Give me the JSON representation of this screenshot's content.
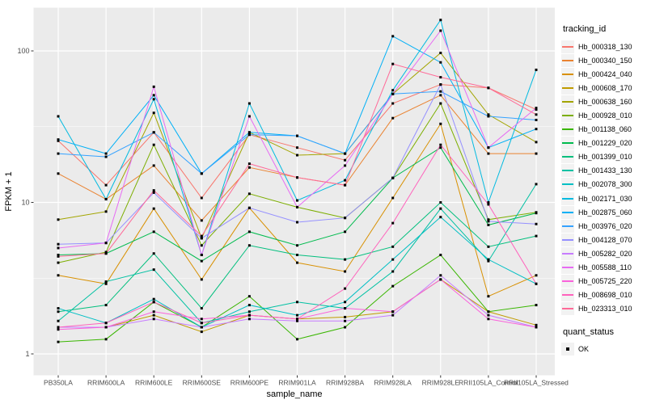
{
  "figure": {
    "panel_bg": "#EBEBEB",
    "grid_color": "#FFFFFF",
    "tick_text_color": "#4D4D4D",
    "tick_mark_color": "#333333",
    "marker_color": "#000000",
    "legend_key_bg": "#F2F2F2"
  },
  "chart_data": {
    "type": "line",
    "title": "",
    "xlabel": "sample_name",
    "ylabel": "FPKM + 1",
    "log_y": true,
    "ylim": [
      0.72,
      193
    ],
    "y_major_ticks": [
      1,
      10,
      100
    ],
    "y_minor_ticks": [
      3.162,
      31.62
    ],
    "grid": "on",
    "legend_position": "right",
    "legend_title": "tracking_id",
    "point_legend": {
      "title": "quant_status",
      "items": [
        "OK"
      ],
      "shape": "filled-square"
    },
    "x_categories": [
      "PB350LA",
      "RRIM600LA",
      "RRIM600LE",
      "RRIM600SE",
      "RRIM600PE",
      "RRIM901LA",
      "RRIM928BA",
      "RRIM928LA",
      "RRIM928LE",
      "RRII105LA_Control",
      "RRII105LA_Stressed"
    ],
    "series": [
      {
        "name": "Hb_000318_130",
        "color": "#F8766D",
        "values": [
          25.5,
          13,
          29,
          10.7,
          28,
          23,
          19,
          45,
          60,
          57,
          41
        ]
      },
      {
        "name": "Hb_000340_150",
        "color": "#EA8331",
        "values": [
          15.5,
          10.5,
          17.5,
          7.6,
          17,
          14.6,
          13,
          36,
          51,
          21,
          21
        ]
      },
      {
        "name": "Hb_000424_040",
        "color": "#D89000",
        "values": [
          3.3,
          2.9,
          9.1,
          3.1,
          9.2,
          4.0,
          3.5,
          10.7,
          33,
          2.4,
          3.3
        ]
      },
      {
        "name": "Hb_000608_170",
        "color": "#C09B00",
        "values": [
          1.5,
          1.5,
          1.8,
          1.4,
          1.8,
          1.7,
          1.75,
          1.9,
          3.1,
          1.9,
          1.55
        ]
      },
      {
        "name": "Hb_000638_160",
        "color": "#A3A500",
        "values": [
          7.7,
          8.7,
          39,
          5.8,
          29,
          20.5,
          21,
          52,
          97,
          38,
          25
        ]
      },
      {
        "name": "Hb_000928_010",
        "color": "#7CAE00",
        "values": [
          4.0,
          4.7,
          24,
          5.2,
          11.4,
          9.3,
          7.9,
          14.5,
          45,
          7.7,
          8.6
        ]
      },
      {
        "name": "Hb_001138_060",
        "color": "#39B600",
        "values": [
          1.2,
          1.25,
          2.2,
          1.5,
          2.4,
          1.25,
          1.5,
          2.8,
          4.5,
          1.9,
          2.1
        ]
      },
      {
        "name": "Hb_001229_020",
        "color": "#00BB4E",
        "values": [
          4.5,
          4.6,
          6.4,
          4.1,
          6.4,
          5.2,
          6.4,
          14.5,
          23,
          7.1,
          8.5
        ]
      },
      {
        "name": "Hb_001399_010",
        "color": "#00BF7D",
        "values": [
          1.9,
          2.1,
          4.6,
          2.0,
          5.2,
          4.5,
          4.2,
          5.1,
          10,
          5.1,
          6.0
        ]
      },
      {
        "name": "Hb_001433_130",
        "color": "#00C1A3",
        "values": [
          1.65,
          3.0,
          3.6,
          1.6,
          1.9,
          2.2,
          2.0,
          3.5,
          9.1,
          4.1,
          13.2
        ]
      },
      {
        "name": "Hb_002078_300",
        "color": "#00BFC4",
        "values": [
          2.0,
          1.6,
          2.3,
          1.5,
          2.1,
          1.8,
          2.2,
          4.2,
          8.0,
          4.2,
          2.9
        ]
      },
      {
        "name": "Hb_002171_030",
        "color": "#00BAE0",
        "values": [
          37,
          10.5,
          48,
          4.5,
          45,
          10.3,
          14,
          55,
          160,
          10,
          75
        ]
      },
      {
        "name": "Hb_002875_060",
        "color": "#00B0F6",
        "values": [
          26,
          21,
          51,
          15.5,
          29,
          27.5,
          21,
          125,
          84,
          23,
          30.5
        ]
      },
      {
        "name": "Hb_003976_020",
        "color": "#35A2FF",
        "values": [
          21,
          20,
          29,
          15.5,
          28,
          27.5,
          21,
          52,
          54,
          37,
          35
        ]
      },
      {
        "name": "Hb_004128_070",
        "color": "#9590FF",
        "values": [
          5.3,
          5.4,
          11.6,
          5.8,
          9.2,
          7.4,
          7.9,
          14.5,
          60,
          7.5,
          7.2
        ]
      },
      {
        "name": "Hb_005282_020",
        "color": "#C77CFF",
        "values": [
          1.5,
          1.5,
          1.7,
          1.5,
          1.7,
          1.65,
          1.65,
          1.8,
          3.3,
          1.8,
          1.5
        ]
      },
      {
        "name": "Hb_005588_110",
        "color": "#E76BF3",
        "values": [
          5.0,
          5.4,
          58,
          4.5,
          37,
          9.3,
          17.5,
          52,
          136,
          23,
          42
        ]
      },
      {
        "name": "Hb_005725_220",
        "color": "#FA62DB",
        "values": [
          1.45,
          1.5,
          1.9,
          1.7,
          1.8,
          1.7,
          2.0,
          1.9,
          3.1,
          1.7,
          1.5
        ]
      },
      {
        "name": "Hb_008698_010",
        "color": "#FF62BC",
        "values": [
          1.5,
          1.6,
          2.2,
          1.6,
          1.8,
          1.7,
          2.7,
          7.3,
          24,
          9.7,
          2.9
        ]
      },
      {
        "name": "Hb_023313_010",
        "color": "#FF6A98",
        "values": [
          4.4,
          4.6,
          12,
          6.0,
          18,
          14.6,
          13,
          82,
          67,
          57,
          38
        ]
      }
    ]
  }
}
